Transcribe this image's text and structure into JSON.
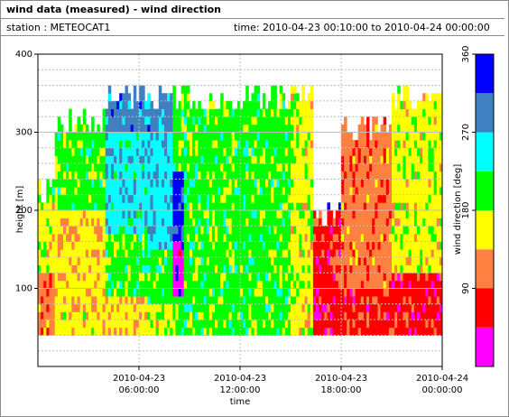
{
  "window": {
    "title": "wind data (measured) - wind direction",
    "station": "station : METEOCAT1",
    "time_range": "time: 2010-04-23 00:10:00 to 2010-04-24 00:00:00"
  },
  "chart_data": {
    "type": "heatmap",
    "title": "wind data (measured) - wind direction",
    "xlabel": "time",
    "ylabel": "height [m]",
    "xlim": [
      "2010-04-23 00:00:00",
      "2010-04-24 00:00:00"
    ],
    "ylim": [
      0,
      400
    ],
    "x_ticks": [
      {
        "time": "2010-04-23 06:00:00",
        "line1": "2010-04-23",
        "line2": "06:00:00"
      },
      {
        "time": "2010-04-23 12:00:00",
        "line1": "2010-04-23",
        "line2": "12:00:00"
      },
      {
        "time": "2010-04-23 18:00:00",
        "line1": "2010-04-23",
        "line2": "18:00:00"
      },
      {
        "time": "2010-04-24 00:00:00",
        "line1": "2010-04-24",
        "line2": "00:00:00"
      }
    ],
    "y_ticks": [
      100,
      200,
      300,
      400
    ],
    "grid": true,
    "colorbar": {
      "label": "wind direction [deg]",
      "range": [
        0,
        360
      ],
      "ticks": [
        90,
        180,
        270,
        360
      ],
      "bins": [
        {
          "from": 0,
          "to": 45,
          "color": "#ff00ff"
        },
        {
          "from": 45,
          "to": 90,
          "color": "#ff0000"
        },
        {
          "from": 90,
          "to": 135,
          "color": "#ff8040"
        },
        {
          "from": 135,
          "to": 180,
          "color": "#ffff00"
        },
        {
          "from": 180,
          "to": 225,
          "color": "#00ff00"
        },
        {
          "from": 225,
          "to": 270,
          "color": "#00ffff"
        },
        {
          "from": 270,
          "to": 315,
          "color": "#4080c0"
        },
        {
          "from": 315,
          "to": 360,
          "color": "#0000ff"
        }
      ]
    },
    "height_bins_m": {
      "lowest": 40,
      "highest": 360,
      "step": 10
    },
    "time_segments": [
      {
        "start": "00:00",
        "end": "01:00",
        "direction_deg": [
          {
            "to_height": 120,
            "deg": 110
          },
          {
            "to_height": 210,
            "deg": 160
          },
          {
            "to_height": 240,
            "deg": 200
          }
        ]
      },
      {
        "start": "01:00",
        "end": "04:00",
        "direction_deg": [
          {
            "to_height": 70,
            "deg": 155
          },
          {
            "to_height": 200,
            "deg": 150
          },
          {
            "to_height": 330,
            "deg": 200
          }
        ]
      },
      {
        "start": "04:00",
        "end": "06:30",
        "direction_deg": [
          {
            "to_height": 90,
            "deg": 150
          },
          {
            "to_height": 170,
            "deg": 200
          },
          {
            "to_height": 300,
            "deg": 250
          },
          {
            "to_height": 360,
            "deg": 290
          }
        ]
      },
      {
        "start": "06:30",
        "end": "08:00",
        "direction_deg": [
          {
            "to_height": 80,
            "deg": 160
          },
          {
            "to_height": 150,
            "deg": 200
          },
          {
            "to_height": 300,
            "deg": 255
          },
          {
            "to_height": 360,
            "deg": 290
          }
        ]
      },
      {
        "start": "08:00",
        "end": "08:40",
        "direction_deg": [
          {
            "to_height": 90,
            "deg": 200
          },
          {
            "to_height": 160,
            "deg": 20
          },
          {
            "to_height": 250,
            "deg": 330
          },
          {
            "to_height": 360,
            "deg": 200
          }
        ]
      },
      {
        "start": "08:40",
        "end": "11:00",
        "direction_deg": [
          {
            "to_height": 360,
            "deg": 200
          }
        ]
      },
      {
        "start": "11:00",
        "end": "15:00",
        "direction_deg": [
          {
            "to_height": 360,
            "deg": 200
          }
        ]
      },
      {
        "start": "15:00",
        "end": "16:20",
        "direction_deg": [
          {
            "to_height": 360,
            "deg": 160
          }
        ]
      },
      {
        "start": "16:20",
        "end": "18:00",
        "direction_deg": [
          {
            "to_height": 200,
            "deg": 70
          },
          {
            "to_height": 210,
            "deg": 330
          }
        ]
      },
      {
        "start": "18:00",
        "end": "21:00",
        "direction_deg": [
          {
            "to_height": 100,
            "deg": 70
          },
          {
            "to_height": 320,
            "deg": 110
          }
        ]
      },
      {
        "start": "21:00",
        "end": "24:00",
        "direction_deg": [
          {
            "to_height": 120,
            "deg": 70
          },
          {
            "to_height": 360,
            "deg": 160
          }
        ]
      }
    ]
  }
}
